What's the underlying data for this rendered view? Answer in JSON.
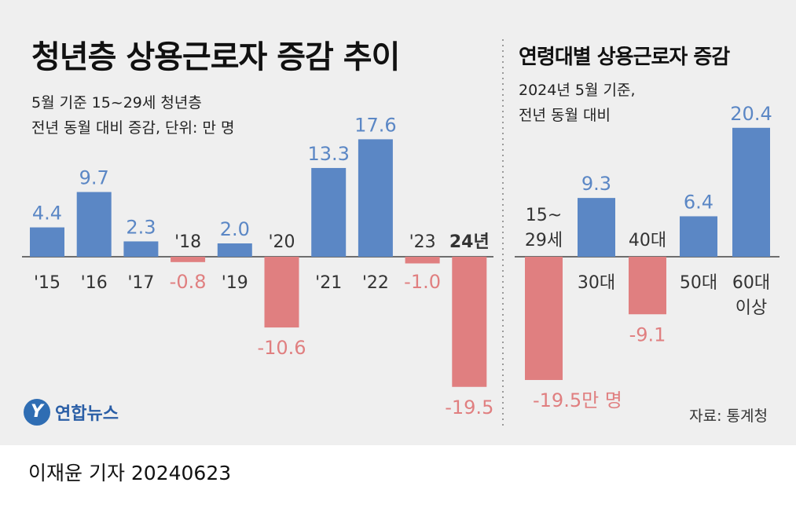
{
  "header": {
    "title": "청년층 상용근로자 증감 추이",
    "subtitle_line1": "5월 기준 15~29세 청년층",
    "subtitle_line2": "전년 동월 대비 증감, 단위: 만 명"
  },
  "right_header": {
    "title": "연령대별 상용근로자 증감",
    "subtitle_line1": "2024년 5월 기준,",
    "subtitle_line2": "전년 동월 대비"
  },
  "logo_text": "연합뉴스",
  "source": "자료: 통계청",
  "byline": "이재윤 기자  20240623",
  "colors": {
    "positive": "#5b87c5",
    "negative": "#e07f80",
    "panel": "#efefef",
    "baseline": "#444444"
  },
  "chart_data": [
    {
      "type": "bar",
      "title": "청년층 상용근로자 증감 추이",
      "categories": [
        "'15",
        "'16",
        "'17",
        "'18",
        "'19",
        "'20",
        "'21",
        "'22",
        "'23",
        "24년"
      ],
      "values": [
        4.4,
        9.7,
        2.3,
        -0.8,
        2.0,
        -10.6,
        13.3,
        17.6,
        -1.0,
        -19.5
      ],
      "value_labels": [
        "4.4",
        "9.7",
        "2.3",
        "-0.8",
        "2.0",
        "-10.6",
        "13.3",
        "17.6",
        "-1.0",
        "-19.5"
      ],
      "unit": "만 명"
    },
    {
      "type": "bar",
      "title": "연령대별 상용근로자 증감",
      "categories": [
        [
          "15~",
          "29세"
        ],
        [
          "30대"
        ],
        [
          "40대"
        ],
        [
          "50대"
        ],
        [
          "60대",
          "이상"
        ]
      ],
      "values": [
        -19.5,
        9.3,
        -9.1,
        6.4,
        20.4
      ],
      "value_labels": [
        "-19.5만 명",
        "9.3",
        "-9.1",
        "6.4",
        "20.4"
      ],
      "unit": "만 명"
    }
  ]
}
